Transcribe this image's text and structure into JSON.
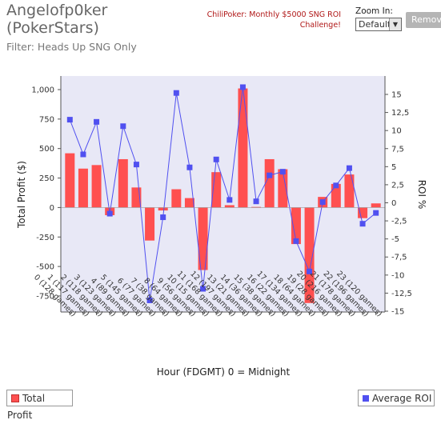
{
  "header": {
    "player": "Angelofp0ker\n(PokerStars)",
    "filter": "Filter: Heads Up SNG Only",
    "promo": "ChiliPoker: Monthly $5000 SNG ROI Challenge!",
    "zoom_label": "Zoom In:",
    "zoom_value": "Default",
    "remove_label": "Remove"
  },
  "legend": {
    "profit": "Total Profit",
    "roi": "Average ROI"
  },
  "chart_data": {
    "type": "bar",
    "xlabel": "Hour (FDGMT) 0 = Midnight",
    "ylabel_left": "Total Profit ($)",
    "ylabel_right": "ROI %",
    "left_axis": {
      "min": -830,
      "max": 1000,
      "ticks": [
        1000,
        750,
        500,
        250,
        0,
        -250,
        -500,
        -750
      ],
      "tick_labels": [
        "1,000",
        "750",
        "500",
        "250",
        "0",
        "-250",
        "-500",
        "-750"
      ]
    },
    "right_axis": {
      "min": -15,
      "max": 16,
      "ticks": [
        15,
        12.5,
        10,
        7.5,
        5,
        2.5,
        0,
        -2.5,
        -5,
        -7.5,
        -10,
        -12.5,
        -15
      ],
      "tick_labels": [
        "15",
        "12,5",
        "10",
        "7,5",
        "5",
        "2,5",
        "0",
        "-2,5",
        "-5",
        "-7,5",
        "-10",
        "-12,5",
        "-15"
      ]
    },
    "categories": [
      "0 (128 games)",
      "1 (117 games)",
      "2 (118 games)",
      "3 (123 games)",
      "4 (89 games)",
      "5 (145 games)",
      "6 (77 games)",
      "7 (38 games)",
      "8 (64 games)",
      "9 (56 games)",
      "10 (15 games)",
      "11 (168 games)",
      "12 (197 games)",
      "13 (21 games)",
      "14 (36 games)",
      "15 (38 games)",
      "16 (22 games)",
      "17 (134 games)",
      "18 (64 games)",
      "19 (28 games)",
      "20 (216 games)",
      "21 (178 games)",
      "22 (196 games)",
      "23 (120 games)"
    ],
    "series": [
      {
        "name": "Total Profit",
        "type": "bar",
        "axis": "left",
        "color": "#ff5050",
        "values": [
          460,
          330,
          360,
          -65,
          410,
          170,
          -280,
          -25,
          155,
          80,
          -530,
          300,
          20,
          1010,
          5,
          410,
          325,
          -310,
          -810,
          90,
          200,
          280,
          -90,
          35
        ]
      },
      {
        "name": "Average ROI",
        "type": "line",
        "axis": "right",
        "color": "#5050f0",
        "values": [
          11.5,
          6.7,
          11.2,
          -1.5,
          10.6,
          5.3,
          -13.5,
          -2.0,
          15.2,
          4.9,
          -11.9,
          6.0,
          0.4,
          16.0,
          0.2,
          3.8,
          4.3,
          -5.3,
          -9.5,
          0.1,
          2.4,
          4.8,
          -2.9,
          -1.4
        ]
      }
    ],
    "grid": false,
    "legend_position": "bottom"
  }
}
